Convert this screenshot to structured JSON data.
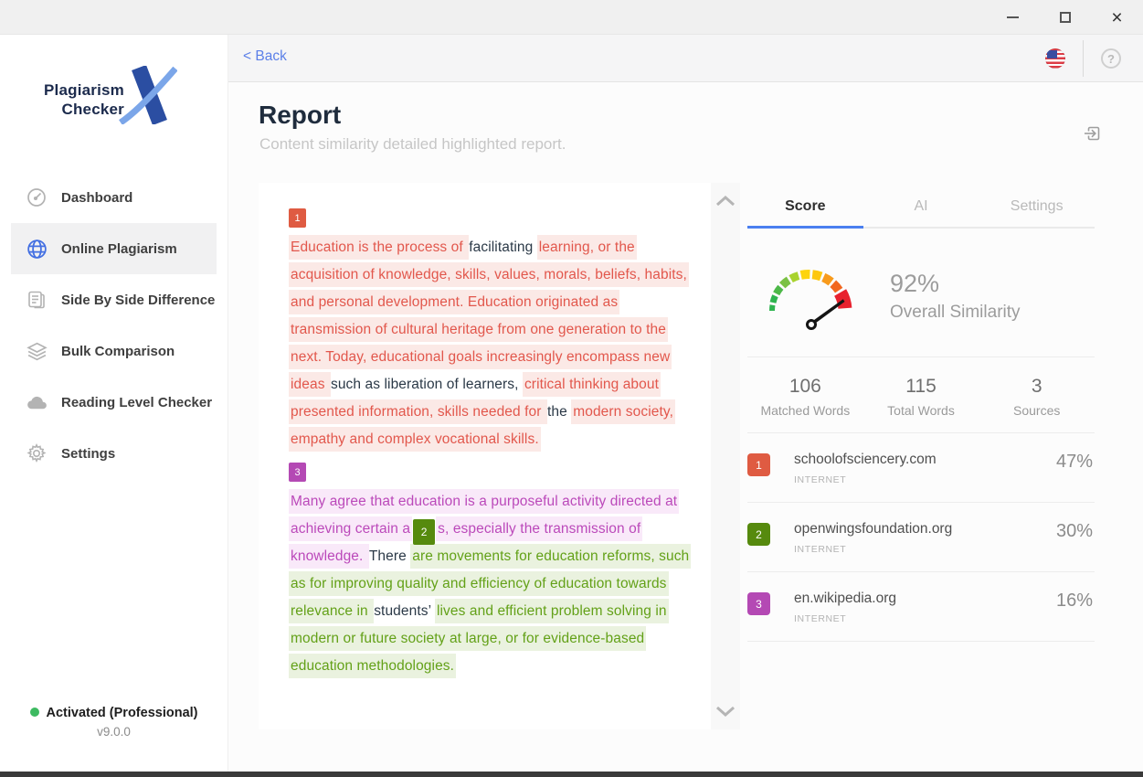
{
  "window_controls": {
    "minimize": "minimize",
    "maximize": "maximize",
    "close": "close"
  },
  "colors": {
    "accent_blue": "#4a7ff0",
    "back_link_blue": "#5b7fe8",
    "activated_dot_green": "#3dba61",
    "source_badges": {
      "1": "#df5b42",
      "2": "#568a0e",
      "3": "#b449b4"
    },
    "match_styles": {
      "1": {
        "text": "#e2574c",
        "bg": "#fbe9e6"
      },
      "2": {
        "text": "#63a118",
        "bg": "#eaf2df"
      },
      "3": {
        "text": "#bb49ba",
        "bg": "#f9e9f9"
      }
    },
    "plain_text": "#2b3947"
  },
  "sidebar": {
    "logo": {
      "line1": "Plagiarism",
      "line2": "Checker"
    },
    "items": [
      {
        "label": "Dashboard",
        "icon": "dashboard-gauge-icon",
        "active": false
      },
      {
        "label": "Online Plagiarism",
        "icon": "globe-icon",
        "active": true
      },
      {
        "label": "Side By Side Difference",
        "icon": "documents-icon",
        "active": false
      },
      {
        "label": "Bulk Comparison",
        "icon": "layers-icon",
        "active": false
      },
      {
        "label": "Reading Level Checker",
        "icon": "cloud-icon",
        "active": false
      },
      {
        "label": "Settings",
        "icon": "gear-icon",
        "active": false
      }
    ],
    "activation": {
      "status": "Activated (Professional)",
      "version": "v9.0.0"
    }
  },
  "topbar": {
    "back_label": "< Back",
    "flag_icon": "us-flag-icon",
    "help_icon": "question-icon"
  },
  "header": {
    "title": "Report",
    "subtitle": "Content similarity detailed highlighted report.",
    "export_icon": "export-icon"
  },
  "document": {
    "paragraphs": [
      {
        "marker": {
          "num": "1",
          "source": "1"
        },
        "segments": [
          {
            "text": "Education is the process of ",
            "source": "1"
          },
          {
            "text": "facilitating ",
            "source": null
          },
          {
            "text": "learning, or the acquisition of knowledge, skills, values, morals, beliefs, habits, and personal development. Education originated as transmission of cultural heritage from one generation to the next. Today, educational goals increasingly encompass new ideas ",
            "source": "1"
          },
          {
            "text": "such as liberation of learners, ",
            "source": null
          },
          {
            "text": "critical thinking about presented information, skills needed for ",
            "source": "1"
          },
          {
            "text": "the ",
            "source": null
          },
          {
            "text": "modern society, empathy and complex vocational skills.",
            "source": "1"
          }
        ]
      },
      {
        "marker": {
          "num": "3",
          "source": "3"
        },
        "segments": [
          {
            "text": "Many agree that education is a purposeful activity directed at achieving certain a",
            "source": "3"
          },
          {
            "badge": "2",
            "source": "2"
          },
          {
            "text": "s, especially the transmission of knowledge. ",
            "source": "3"
          },
          {
            "text": "There ",
            "source": null
          },
          {
            "text": "are movements for education reforms, such as for improving quality and efficiency of education towards relevance in ",
            "source": "2"
          },
          {
            "text": "students’ ",
            "source": null
          },
          {
            "text": "lives and efficient problem solving in modern or future society at large, or for evidence-based education methodologies.",
            "source": "2"
          }
        ]
      }
    ]
  },
  "score_panel": {
    "tabs": [
      {
        "label": "Score",
        "active": true
      },
      {
        "label": "AI",
        "active": false
      },
      {
        "label": "Settings",
        "active": false
      }
    ],
    "overall": {
      "percent": "92%",
      "label": "Overall Similarity"
    },
    "stats": [
      {
        "value": "106",
        "label": "Matched Words"
      },
      {
        "value": "115",
        "label": "Total Words"
      },
      {
        "value": "3",
        "label": "Sources"
      }
    ],
    "sources": [
      {
        "num": "1",
        "domain": "schoolofsciencery.com",
        "type": "INTERNET",
        "percent": "47%"
      },
      {
        "num": "2",
        "domain": "openwingsfoundation.org",
        "type": "INTERNET",
        "percent": "30%"
      },
      {
        "num": "3",
        "domain": "en.wikipedia.org",
        "type": "INTERNET",
        "percent": "16%"
      }
    ]
  }
}
